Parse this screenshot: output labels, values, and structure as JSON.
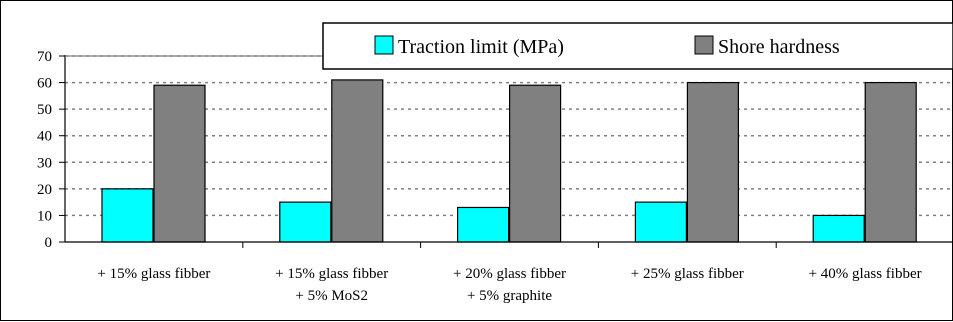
{
  "chart_data": {
    "type": "bar",
    "categories": [
      [
        "+ 15% glass fibber"
      ],
      [
        "+ 15% glass fibber",
        "+ 5% MoS2"
      ],
      [
        "+ 20% glass fibber",
        "+ 5% graphite"
      ],
      [
        "+ 25% glass fibber"
      ],
      [
        "+ 40% glass fibber"
      ]
    ],
    "series": [
      {
        "name": "Traction limit (MPa)",
        "color": "#00FFFF",
        "values": [
          20,
          15,
          13,
          15,
          10
        ]
      },
      {
        "name": "Shore hardness",
        "color": "#808080",
        "values": [
          59,
          61,
          59,
          60,
          60
        ]
      }
    ],
    "ylim": [
      0,
      70
    ],
    "yticks": [
      0,
      10,
      20,
      30,
      40,
      50,
      60,
      70
    ],
    "grid": true,
    "legend_position": "top-right"
  }
}
